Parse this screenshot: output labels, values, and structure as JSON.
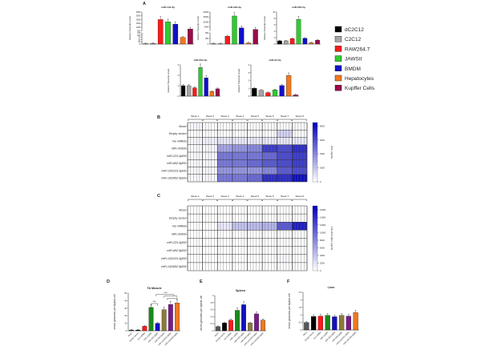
{
  "panels": {
    "A": "A",
    "B": "B",
    "C": "C",
    "D": "D",
    "E": "E",
    "F": "F"
  },
  "legend": {
    "items": [
      {
        "label": "dC2C12",
        "color": "#000000"
      },
      {
        "label": "C2C12",
        "color": "#a6a6a6"
      },
      {
        "label": "RAW264.7",
        "color": "#ff1a1a"
      },
      {
        "label": "JAWSII",
        "color": "#2ecc2e"
      },
      {
        "label": "BMDM",
        "color": "#1010c8"
      },
      {
        "label": "Hepatocytes",
        "color": "#f07820"
      },
      {
        "label": "Kupffer Cells",
        "color": "#9b0a4a"
      }
    ]
  },
  "chart_data": [
    {
      "id": "A1",
      "type": "bar",
      "title": "miR-142-3p",
      "ylabel": "Relative Transcript Levels",
      "broken_axis": true,
      "categories": [
        "dC2C12",
        "C2C12",
        "RAW264.7",
        "JAWSII",
        "BMDM",
        "Hepatocytes",
        "Kupffer Cells"
      ],
      "values": [
        3,
        8,
        2000,
        1700,
        1400,
        75,
        750
      ],
      "lower_ticks": [
        0,
        25,
        50,
        75,
        100,
        125
      ],
      "upper_ticks": [
        500,
        1000,
        1500,
        2000,
        2500,
        3000
      ],
      "lower_max": 125,
      "upper_range": [
        500,
        3000
      ]
    },
    {
      "id": "A2",
      "type": "bar",
      "title": "miR-223-3p",
      "ylabel": "Relative Transcript Levels",
      "broken_axis": true,
      "categories": [
        "dC2C12",
        "C2C12",
        "RAW264.7",
        "JAWSII",
        "BMDM",
        "Hepatocytes",
        "Kupffer Cells"
      ],
      "values": [
        2,
        5,
        350,
        16000,
        4000,
        50,
        2500
      ],
      "lower_ticks": [
        0,
        250,
        500
      ],
      "upper_ticks": [
        5000,
        10000,
        15000,
        20000
      ],
      "lower_max": 500,
      "upper_range": [
        1000,
        20000
      ]
    },
    {
      "id": "A3",
      "type": "bar",
      "title": "miR-652-5p",
      "ylabel": "Relative Transcript Levels",
      "categories": [
        "dC2C12",
        "C2C12",
        "RAW264.7",
        "JAWSII",
        "BMDM",
        "Hepatocytes",
        "Kupffer Cells"
      ],
      "values": [
        1.0,
        1.0,
        1.7,
        7.7,
        1.8,
        0.4,
        1.2
      ],
      "ylim": [
        0,
        10
      ],
      "yticks": [
        0,
        2,
        4,
        6,
        8,
        10
      ]
    },
    {
      "id": "A4",
      "type": "bar",
      "title": "miR-652-3p",
      "ylabel": "Relative Transcript Levels",
      "categories": [
        "dC2C12",
        "C2C12",
        "RAW264.7",
        "JAWSII",
        "BMDM",
        "Hepatocytes",
        "Kupffer Cells"
      ],
      "values": [
        1.0,
        1.0,
        0.8,
        2.75,
        1.75,
        0.45,
        0.7
      ],
      "ylim": [
        0,
        3
      ],
      "yticks": [
        0,
        1,
        2,
        3
      ]
    },
    {
      "id": "A5",
      "type": "bar",
      "title": "miR-33-5p",
      "ylabel": "Relative Transcript Levels",
      "categories": [
        "dC2C12",
        "C2C12",
        "RAW264.7",
        "JAWSII",
        "BMDM",
        "Hepatocytes",
        "Kupffer Cells"
      ],
      "values": [
        1.0,
        0.75,
        0.45,
        0.8,
        1.35,
        2.65,
        0.15
      ],
      "ylim": [
        0,
        4
      ],
      "yticks": [
        0,
        1,
        2,
        3,
        4
      ]
    },
    {
      "id": "B",
      "type": "heatmap",
      "colorbar_label": "OVA (ng/ml)",
      "colorbar_ticks": [
        0,
        2000,
        4000,
        6000,
        8000
      ],
      "zlim": [
        0,
        8500
      ],
      "columns": [
        "Week 1",
        "Week 2",
        "Week 3",
        "Week 4",
        "Week 5",
        "Week 6",
        "Week 7",
        "Week 8"
      ],
      "rows": [
        "Mock",
        "Empty vector",
        "No miRBS",
        "miR-142BS",
        "miR-223-3pBS",
        "miR-652-5pBS",
        "miR-142/223-3pBS",
        "miR-142/652-5pBS"
      ],
      "values": [
        [
          300,
          100,
          100,
          100,
          100,
          100,
          100,
          100
        ],
        [
          100,
          100,
          100,
          100,
          100,
          100,
          1500,
          100
        ],
        [
          300,
          500,
          800,
          800,
          800,
          800,
          800,
          800
        ],
        [
          200,
          300,
          3000,
          3500,
          4000,
          6500,
          6000,
          7000
        ],
        [
          200,
          300,
          4500,
          4500,
          4500,
          5000,
          6000,
          6500
        ],
        [
          200,
          300,
          4500,
          4500,
          5000,
          5500,
          6000,
          6500
        ],
        [
          200,
          300,
          3500,
          3500,
          3500,
          4000,
          5500,
          6000
        ],
        [
          200,
          300,
          4500,
          4500,
          5000,
          7000,
          7000,
          8000
        ]
      ]
    },
    {
      "id": "C",
      "type": "heatmap",
      "colorbar_label": "Anti-OVA IgG1 (ng/ml)",
      "colorbar_ticks": [
        0,
        2000,
        4000,
        6000,
        8000,
        10000,
        12000,
        14000,
        16000
      ],
      "zlim": [
        0,
        17000
      ],
      "columns": [
        "Week 1",
        "Week 2",
        "Week 3",
        "Week 4",
        "Week 5",
        "Week 6",
        "Week 7",
        "Week 8"
      ],
      "rows": [
        "Mock",
        "Empty vector",
        "No miRBS",
        "miR-142BS",
        "miR-223-3pBS",
        "miR-652-5pBS",
        "miR-142/223-3pBS",
        "miR-142/652-5pBS"
      ],
      "values": [
        [
          0,
          0,
          0,
          0,
          0,
          0,
          0,
          0
        ],
        [
          0,
          0,
          0,
          0,
          0,
          0,
          0,
          0
        ],
        [
          0,
          0,
          1500,
          4000,
          4500,
          5000,
          11000,
          15000
        ],
        [
          0,
          0,
          0,
          0,
          0,
          0,
          0,
          0
        ],
        [
          0,
          0,
          0,
          0,
          0,
          0,
          0,
          0
        ],
        [
          0,
          0,
          0,
          0,
          0,
          0,
          0,
          0
        ],
        [
          0,
          0,
          0,
          0,
          0,
          0,
          500,
          0
        ],
        [
          0,
          0,
          0,
          0,
          0,
          0,
          0,
          0
        ]
      ]
    },
    {
      "id": "D",
      "type": "bar",
      "title": "TA Muscle",
      "ylabel": "vector genomes per diploid cell",
      "categories": [
        "Mock",
        "Empty Vector",
        "No miRBS",
        "miR-142BS",
        "miR-223-3pBS",
        "miR-652-5pBS",
        "miR-142/223-3pBS",
        "miR-142/652-5pBS"
      ],
      "colors": [
        "#333333",
        "#000000",
        "#ff1a1a",
        "#1a8a1a",
        "#1010c0",
        "#8c7a3a",
        "#7a1a8a",
        "#f07820"
      ],
      "values": [
        1,
        1,
        6,
        31,
        10,
        28,
        35,
        37
      ],
      "ylim": [
        0,
        50
      ],
      "yticks": [
        0,
        10,
        20,
        30,
        40,
        50
      ],
      "annotations": [
        "***",
        "***"
      ]
    },
    {
      "id": "E",
      "type": "bar",
      "title": "Spleen",
      "ylabel": "vector genomes per diploid cell",
      "categories": [
        "Mock",
        "Empty Vector",
        "No miRBS",
        "miR-142BS",
        "miR-223-3pBS",
        "miR-652-5pBS",
        "miR-142/223-3pBS",
        "miR-142/652-5pBS"
      ],
      "colors": [
        "#555555",
        "#000000",
        "#ff1a1a",
        "#1a8a1a",
        "#1010c0",
        "#8c7a3a",
        "#7a1a8a",
        "#f07820"
      ],
      "values": [
        0.12,
        0.22,
        0.3,
        0.58,
        0.74,
        0.22,
        0.48,
        0.3
      ],
      "ylim": [
        0,
        1.0
      ],
      "yticks": [
        0,
        0.2,
        0.4,
        0.6,
        0.8,
        1.0
      ]
    },
    {
      "id": "F",
      "type": "bar",
      "title": "Liver",
      "ylabel": "vector genomes per diploid cell",
      "categories": [
        "Mock",
        "Empty Vector",
        "No miRBS",
        "miR-142BS",
        "miR-223-3pBS",
        "miR-652-5pBS",
        "miR-142/223-3pBS",
        "miR-142/652-5pBS"
      ],
      "colors": [
        "#555555",
        "#000000",
        "#ff1a1a",
        "#1a8a1a",
        "#1010c0",
        "#8c7a3a",
        "#7a1a8a",
        "#f07820"
      ],
      "values": [
        0.5,
        0.9,
        0.92,
        0.97,
        0.88,
        0.97,
        0.92,
        1.15
      ],
      "ylim": [
        0,
        2.5
      ],
      "yticks": [
        0,
        0.5,
        1.0,
        1.5,
        2.0,
        2.5
      ]
    }
  ]
}
